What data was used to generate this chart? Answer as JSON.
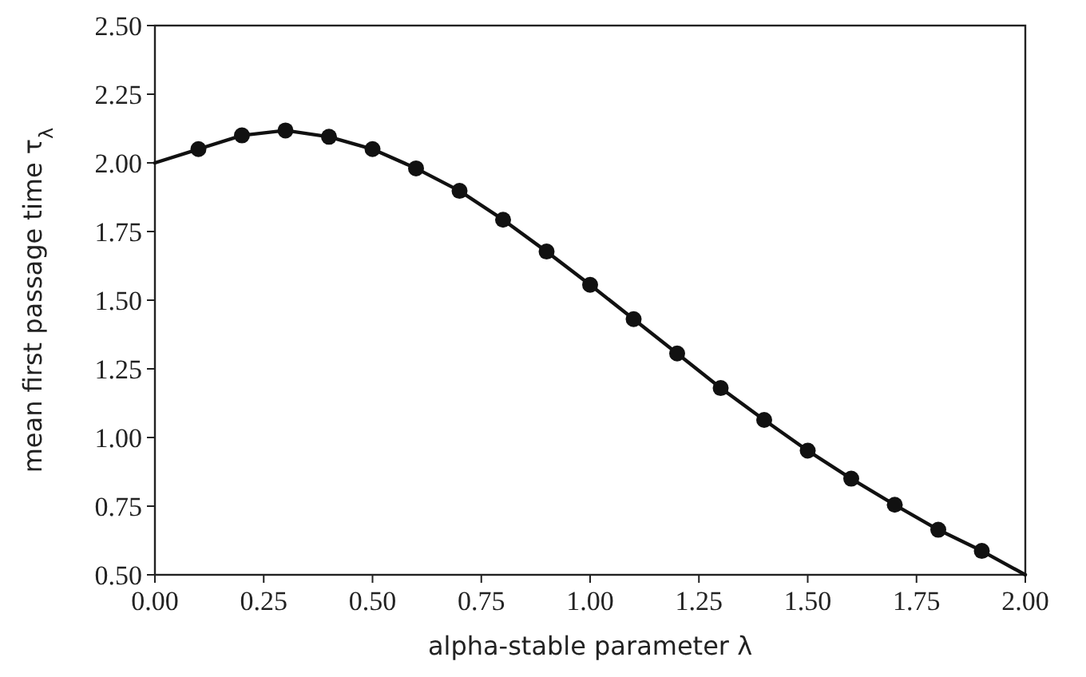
{
  "chart_data": {
    "type": "line",
    "xlabel": "alpha-stable parameter λ",
    "ylabel": "mean first passage time τ$_{λ}$",
    "xlim": [
      0,
      2
    ],
    "ylim": [
      0.5,
      2.5
    ],
    "xticks": [
      {
        "value": 0,
        "label": "0.00"
      },
      {
        "value": 0.25,
        "label": "0.25"
      },
      {
        "value": 0.5,
        "label": "0.50"
      },
      {
        "value": 0.75,
        "label": "0.75"
      },
      {
        "value": 1,
        "label": "1.00"
      },
      {
        "value": 1.25,
        "label": "1.25"
      },
      {
        "value": 1.5,
        "label": "1.50"
      },
      {
        "value": 1.75,
        "label": "1.75"
      },
      {
        "value": 2,
        "label": "2.00"
      }
    ],
    "yticks": [
      {
        "value": 0.5,
        "label": "0.50"
      },
      {
        "value": 0.75,
        "label": "0.75"
      },
      {
        "value": 1,
        "label": "1.00"
      },
      {
        "value": 1.25,
        "label": "1.25"
      },
      {
        "value": 1.5,
        "label": "1.50"
      },
      {
        "value": 1.75,
        "label": "1.75"
      },
      {
        "value": 2,
        "label": "2.00"
      },
      {
        "value": 2.25,
        "label": "2.25"
      },
      {
        "value": 2.5,
        "label": "2.50"
      }
    ],
    "grid": false,
    "series": [
      {
        "type": "line",
        "color": "#111111",
        "marker": "none",
        "line_style": "solid",
        "x": [
          0,
          0.1,
          0.2,
          0.3,
          0.4,
          0.5,
          0.6,
          0.7,
          0.8,
          0.9,
          1.0,
          1.1,
          1.2,
          1.3,
          1.4,
          1.5,
          1.6,
          1.7,
          1.8,
          1.9,
          2.0
        ],
        "values": [
          2.0,
          2.05,
          2.1,
          2.118,
          2.095,
          2.05,
          1.98,
          1.898,
          1.793,
          1.677,
          1.556,
          1.431,
          1.306,
          1.18,
          1.064,
          0.952,
          0.85,
          0.755,
          0.664,
          0.587,
          0.5
        ]
      },
      {
        "type": "scatter",
        "color": "#111111",
        "marker": "circle",
        "x": [
          0.1,
          0.2,
          0.3,
          0.4,
          0.5,
          0.6,
          0.7,
          0.8,
          0.9,
          1.0,
          1.1,
          1.2,
          1.3,
          1.4,
          1.5,
          1.6,
          1.7,
          1.8,
          1.9
        ],
        "values": [
          2.05,
          2.1,
          2.118,
          2.095,
          2.05,
          1.98,
          1.898,
          1.793,
          1.677,
          1.556,
          1.431,
          1.306,
          1.18,
          1.064,
          0.952,
          0.85,
          0.755,
          0.664,
          0.587
        ]
      }
    ]
  }
}
